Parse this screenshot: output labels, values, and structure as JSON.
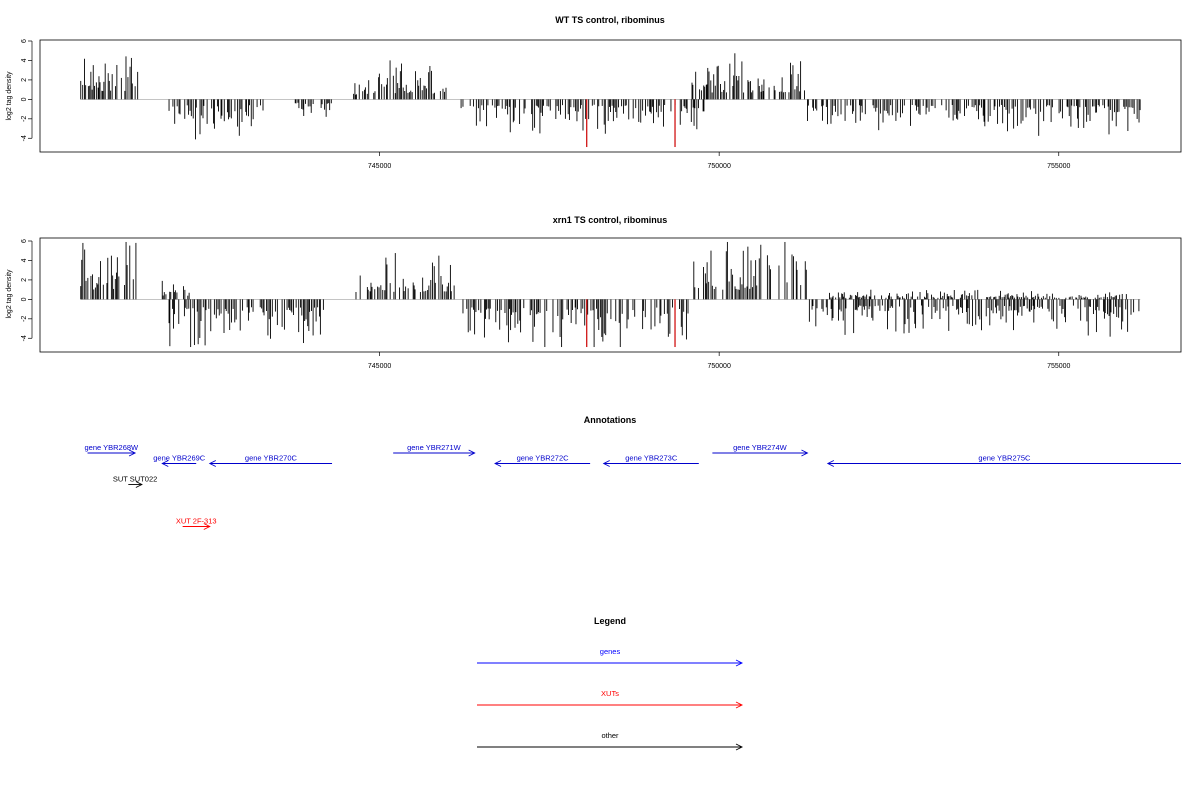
{
  "chart_data": [
    {
      "type": "bar",
      "title": "WT TS control, ribominus",
      "ylabel": "log2 tag density",
      "xlabel": "",
      "xlim": [
        740000,
        756800
      ],
      "ylim": [
        -5,
        6
      ],
      "xticks": [
        745000,
        750000,
        755000
      ],
      "xtick_labels": [
        "745000",
        "750000",
        "755000"
      ],
      "yticks": [
        -4,
        -2,
        0,
        2,
        4,
        6
      ],
      "ytick_labels": [
        "-4",
        "-2",
        "0",
        "2",
        "4",
        "6"
      ],
      "grid": false,
      "profile": [
        {
          "from": 740600,
          "to": 741450,
          "sign": 1,
          "amp": 3.4
        },
        {
          "from": 741500,
          "to": 742300,
          "sign": 0,
          "amp": 0
        },
        {
          "from": 741900,
          "to": 743300,
          "sign": -1,
          "amp": 2.4
        },
        {
          "from": 743300,
          "to": 743700,
          "sign": 0,
          "amp": 0
        },
        {
          "from": 743700,
          "to": 744300,
          "sign": -1,
          "amp": 1.3
        },
        {
          "from": 744600,
          "to": 745000,
          "sign": 1,
          "amp": 1.8
        },
        {
          "from": 745000,
          "to": 746000,
          "sign": 1,
          "amp": 2.4
        },
        {
          "from": 746200,
          "to": 749800,
          "sign": -1,
          "amp": 2.2
        },
        {
          "from": 749600,
          "to": 751300,
          "sign": 1,
          "amp": 2.8
        },
        {
          "from": 751300,
          "to": 756200,
          "sign": -1,
          "amp": 2.3
        }
      ],
      "highlights": [
        {
          "x": 748050,
          "y": -4.9,
          "color": "#cc0000"
        },
        {
          "x": 749350,
          "y": -4.9,
          "color": "#cc0000"
        }
      ]
    },
    {
      "type": "bar",
      "title": "xrn1 TS control, ribominus",
      "ylabel": "log2 tag density",
      "xlabel": "",
      "xlim": [
        740000,
        756800
      ],
      "ylim": [
        -5,
        6
      ],
      "xticks": [
        745000,
        750000,
        755000
      ],
      "xtick_labels": [
        "745000",
        "750000",
        "755000"
      ],
      "yticks": [
        -4,
        -2,
        0,
        2,
        4,
        6
      ],
      "ytick_labels": [
        "-4",
        "-2",
        "0",
        "2",
        "4",
        "6"
      ],
      "grid": false,
      "profile": [
        {
          "from": 740600,
          "to": 741450,
          "sign": 1,
          "amp": 3.8
        },
        {
          "from": 741800,
          "to": 742200,
          "sign": 1,
          "amp": 1.2
        },
        {
          "from": 741900,
          "to": 744200,
          "sign": -1,
          "amp": 3.2
        },
        {
          "from": 744200,
          "to": 744600,
          "sign": 0,
          "amp": 0
        },
        {
          "from": 744600,
          "to": 746100,
          "sign": 1,
          "amp": 3.0
        },
        {
          "from": 746200,
          "to": 749600,
          "sign": -1,
          "amp": 3.3
        },
        {
          "from": 749600,
          "to": 751300,
          "sign": 1,
          "amp": 3.9
        },
        {
          "from": 751300,
          "to": 756200,
          "sign": -1,
          "amp": 2.5
        },
        {
          "from": 751600,
          "to": 756000,
          "sign": 1,
          "amp": 0.6
        }
      ],
      "highlights": [
        {
          "x": 748050,
          "y": -4.9,
          "color": "#cc0000"
        },
        {
          "x": 749350,
          "y": -4.9,
          "color": "#cc0000"
        }
      ]
    }
  ],
  "annotations": {
    "title": "Annotations",
    "items": [
      {
        "label": "gene YBR268W",
        "color": "#0000cc",
        "from": 740700,
        "to": 741400,
        "dir": "right",
        "row": 0
      },
      {
        "label": "gene YBR269C",
        "color": "#0000cc",
        "from": 741800,
        "to": 742300,
        "dir": "left",
        "row": 1
      },
      {
        "label": "gene YBR270C",
        "color": "#0000cc",
        "from": 742500,
        "to": 744300,
        "dir": "left",
        "row": 1
      },
      {
        "label": "gene YBR271W",
        "color": "#0000cc",
        "from": 745200,
        "to": 746400,
        "dir": "right",
        "row": 0
      },
      {
        "label": "gene YBR272C",
        "color": "#0000cc",
        "from": 746700,
        "to": 748100,
        "dir": "left",
        "row": 1
      },
      {
        "label": "gene YBR273C",
        "color": "#0000cc",
        "from": 748300,
        "to": 749700,
        "dir": "left",
        "row": 1
      },
      {
        "label": "gene YBR274W",
        "color": "#0000cc",
        "from": 749900,
        "to": 751300,
        "dir": "right",
        "row": 0
      },
      {
        "label": "gene YBR275C",
        "color": "#0000cc",
        "from": 751600,
        "to": 756800,
        "dir": "left",
        "row": 1
      },
      {
        "label": "SUT SUT022",
        "color": "#000000",
        "from": 741300,
        "to": 741500,
        "dir": "right",
        "row": 3
      },
      {
        "label": "XUT 2F-313",
        "color": "#ff0000",
        "from": 742100,
        "to": 742500,
        "dir": "right",
        "row": 7
      }
    ]
  },
  "legend": {
    "title": "Legend",
    "items": [
      {
        "label": "genes",
        "color": "#0000ff"
      },
      {
        "label": "XUTs",
        "color": "#ff0000"
      },
      {
        "label": "other",
        "color": "#000000"
      }
    ]
  }
}
